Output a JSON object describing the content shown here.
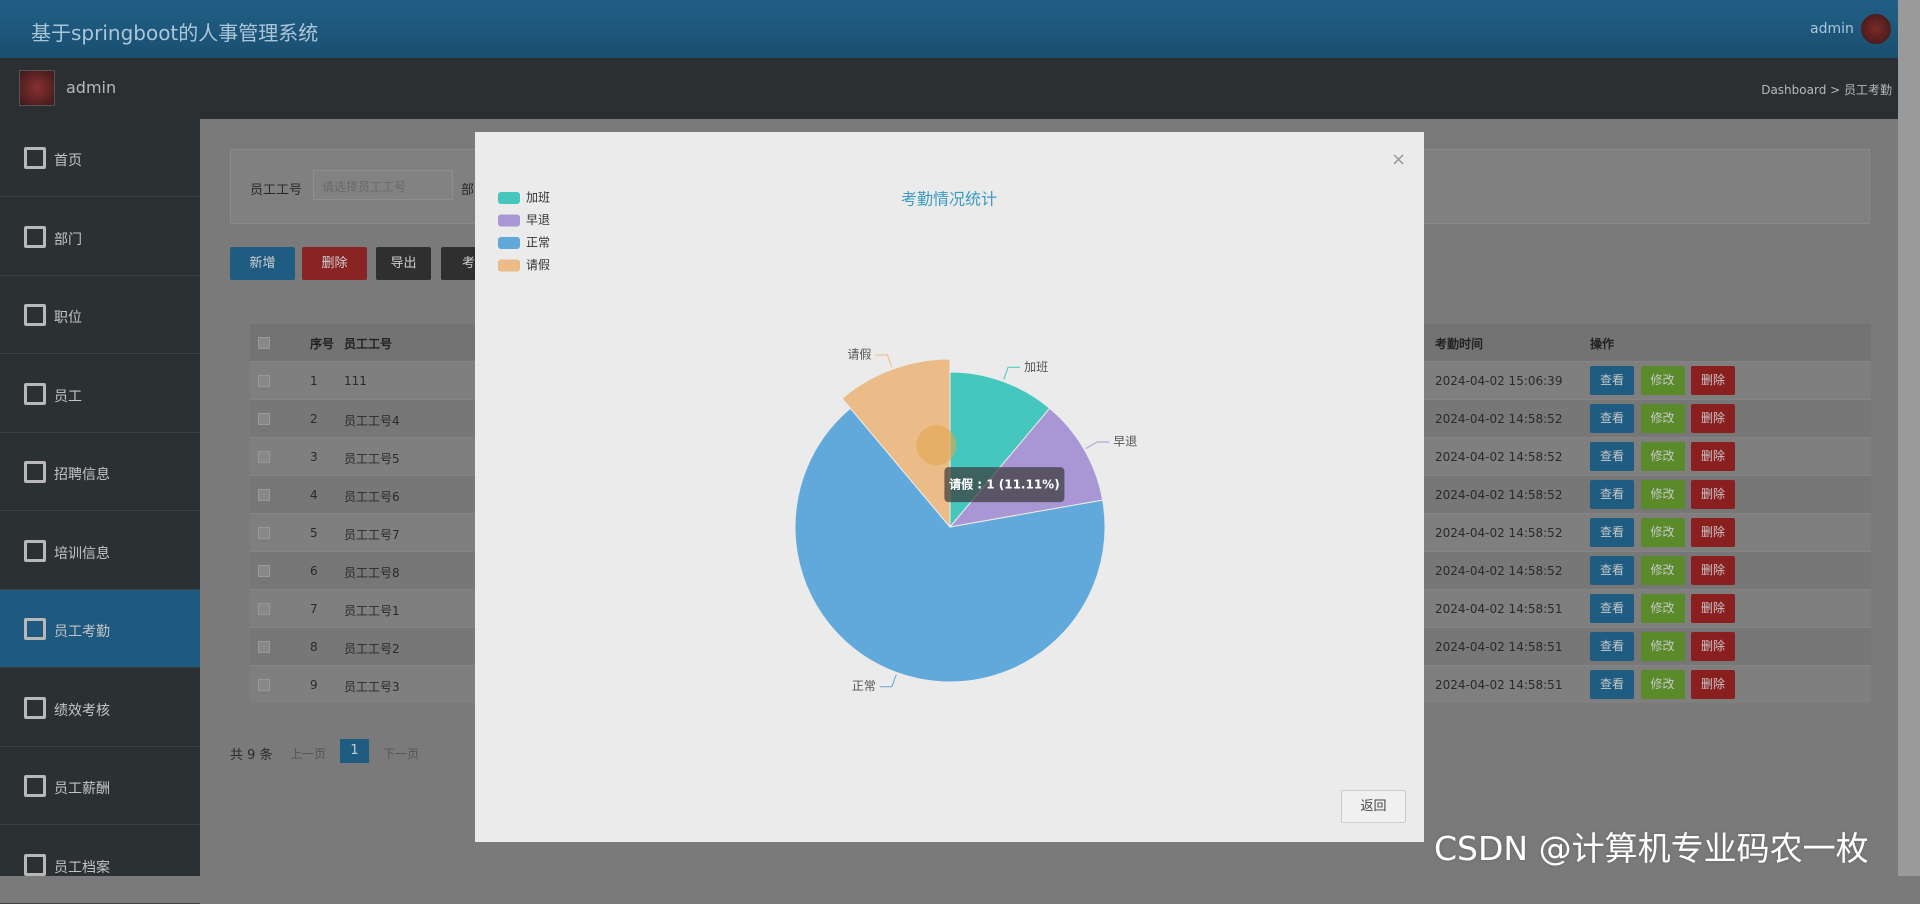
{
  "header": {
    "title": "基于springboot的人事管理系统",
    "user": "admin"
  },
  "subbar": {
    "user": "admin",
    "breadcrumb": "Dashboard > 员工考勤"
  },
  "sidebar": {
    "items": [
      "首页",
      "部门",
      "职位",
      "员工",
      "招聘信息",
      "培训信息",
      "员工考勤",
      "绩效考核",
      "员工薪酬",
      "员工档案"
    ],
    "active": 6
  },
  "search": {
    "label": "员工工号",
    "placeholder": "请选择员工工号",
    "next_label": "部"
  },
  "toolbar": {
    "buttons": [
      "新增",
      "删除",
      "导出",
      "考"
    ]
  },
  "table": {
    "headers": [
      "序号",
      "员工工号",
      "考勤时间",
      "操作"
    ],
    "rows": [
      [
        "1",
        "111",
        "2024-04-02 15:06:39"
      ],
      [
        "2",
        "员工工号4",
        "2024-04-02 14:58:52"
      ],
      [
        "3",
        "员工工号5",
        "2024-04-02 14:58:52"
      ],
      [
        "4",
        "员工工号6",
        "2024-04-02 14:58:52"
      ],
      [
        "5",
        "员工工号7",
        "2024-04-02 14:58:52"
      ],
      [
        "6",
        "员工工号8",
        "2024-04-02 14:58:52"
      ],
      [
        "7",
        "员工工号1",
        "2024-04-02 14:58:51"
      ],
      [
        "8",
        "员工工号2",
        "2024-04-02 14:58:51"
      ],
      [
        "9",
        "员工工号3",
        "2024-04-02 14:58:51"
      ]
    ],
    "row_actions": [
      "查看",
      "修改",
      "删除"
    ]
  },
  "pagination": {
    "total": "共 9 条",
    "prev": "上一页",
    "page": "1",
    "next": "下一页"
  },
  "modal": {
    "close": "×",
    "back": "返回"
  },
  "chart_data": {
    "type": "pie",
    "title": "考勤情况统计",
    "categories": [
      "加班",
      "早退",
      "正常",
      "请假"
    ],
    "values": [
      1,
      1,
      6,
      1
    ],
    "colors": [
      "#45c7bd",
      "#a996d4",
      "#62a9db",
      "#ebbc88"
    ],
    "legend": "top-left",
    "hovered": 3,
    "tooltip": "请假 : 1 (11.11%)"
  },
  "watermark": "CSDN @计算机专业码农一枚"
}
